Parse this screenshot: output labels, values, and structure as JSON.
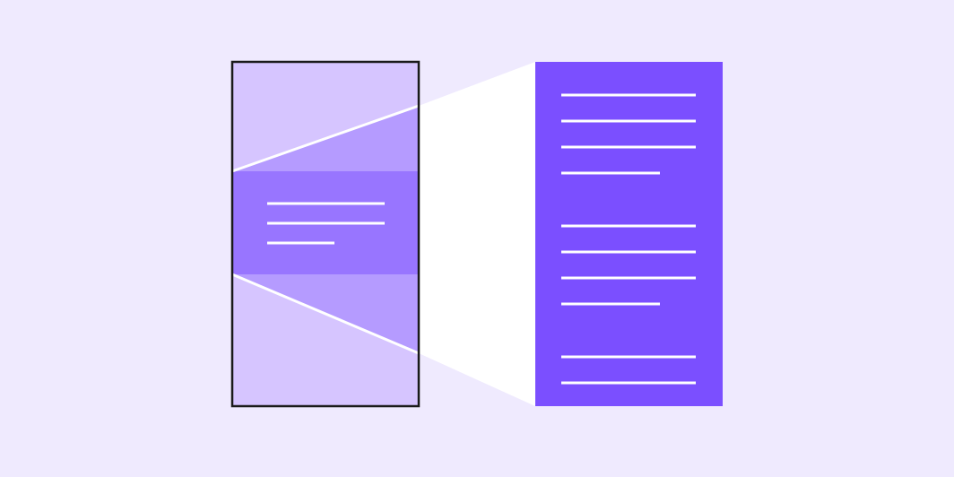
{
  "colors": {
    "background": "#efeafe",
    "frame_fill": "#d6c5ff",
    "wedge_fill": "#b59bff",
    "focus_band": "#9875ff",
    "panel_fill": "#7b4fff",
    "projection": "#ffffff",
    "frame_border": "#1a1a1a",
    "text_lines": "#ffffff"
  },
  "icons": {
    "illustration": "zoom-magnify-document-icon"
  }
}
